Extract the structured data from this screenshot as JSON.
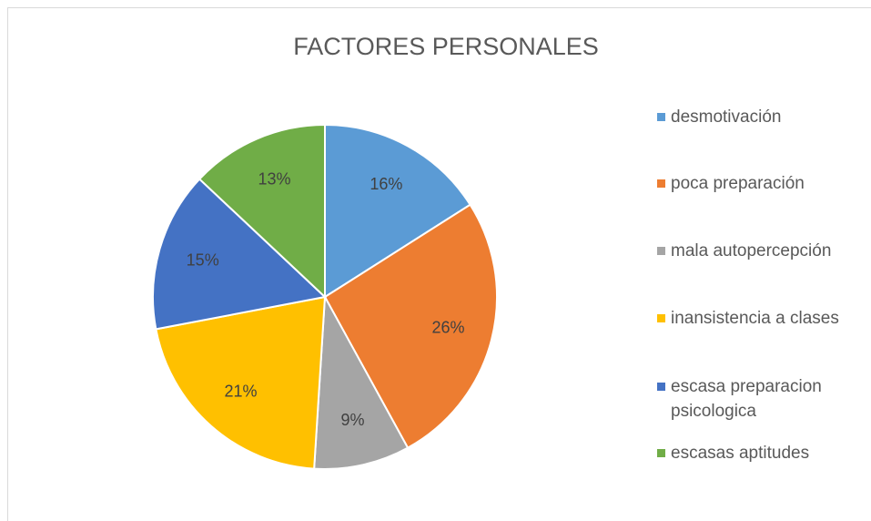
{
  "chart_data": {
    "type": "pie",
    "title": "FACTORES PERSONALES",
    "categories": [
      "desmotivación",
      "poca preparación",
      "mala autopercepción",
      "inansistencia a clases",
      "escasa preparacion psicologica",
      "escasas aptitudes"
    ],
    "values": [
      16,
      26,
      9,
      21,
      15,
      13
    ],
    "value_labels": [
      "16%",
      "26%",
      "9%",
      "21%",
      "15%",
      "13%"
    ],
    "colors": [
      "#5b9bd5",
      "#ed7d31",
      "#a5a5a5",
      "#ffc000",
      "#4472c4",
      "#70ad47"
    ],
    "legend": "right"
  }
}
